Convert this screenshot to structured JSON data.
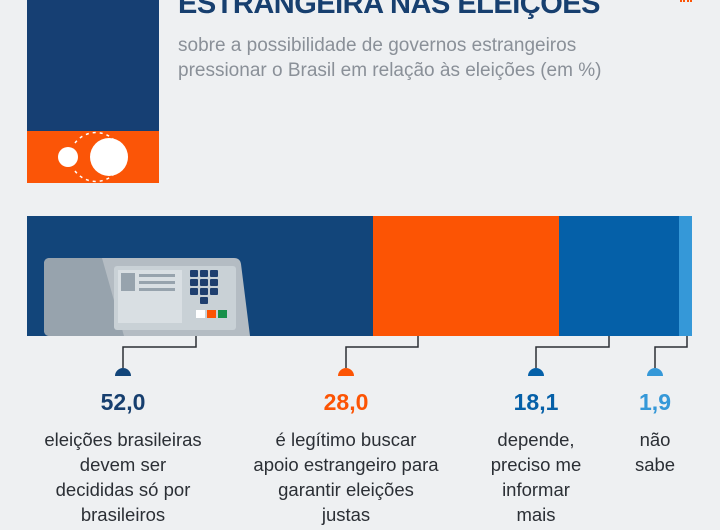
{
  "header": {
    "title": "ESTRANGEIRA NAS ELEIÇÕES",
    "subtitle": "sobre a possibilidade de governos estrangeiros pressionar o Brasil em relação às eleições (em %)"
  },
  "colors": {
    "navy": "#12457a",
    "orange": "#fc5404",
    "blue": "#0560a8",
    "light_blue": "#3598d8",
    "title": "#173f6f"
  },
  "chart_data": {
    "type": "bar",
    "stacked": true,
    "orientation": "horizontal",
    "categories": [
      "eleições brasileiras devem ser decididas só por brasileiros",
      "é legítimo buscar apoio estrangeiro para garantir eleições justas",
      "depende, preciso me informar mais",
      "não sabe"
    ],
    "values": [
      52.0,
      28.0,
      18.1,
      1.9
    ],
    "value_labels": [
      "52,0",
      "28,0",
      "18,1",
      "1,9"
    ],
    "label_lines": [
      [
        "eleições brasileiras",
        "devem ser",
        "decididas só por",
        "brasileiros"
      ],
      [
        "é legítimo buscar",
        "apoio estrangeiro para",
        "garantir eleições",
        "justas"
      ],
      [
        "depende,",
        "preciso me",
        "informar",
        "mais"
      ],
      [
        "não",
        "sabe"
      ]
    ],
    "colors": [
      "#12457a",
      "#fc5404",
      "#0560a8",
      "#3598d8"
    ]
  }
}
